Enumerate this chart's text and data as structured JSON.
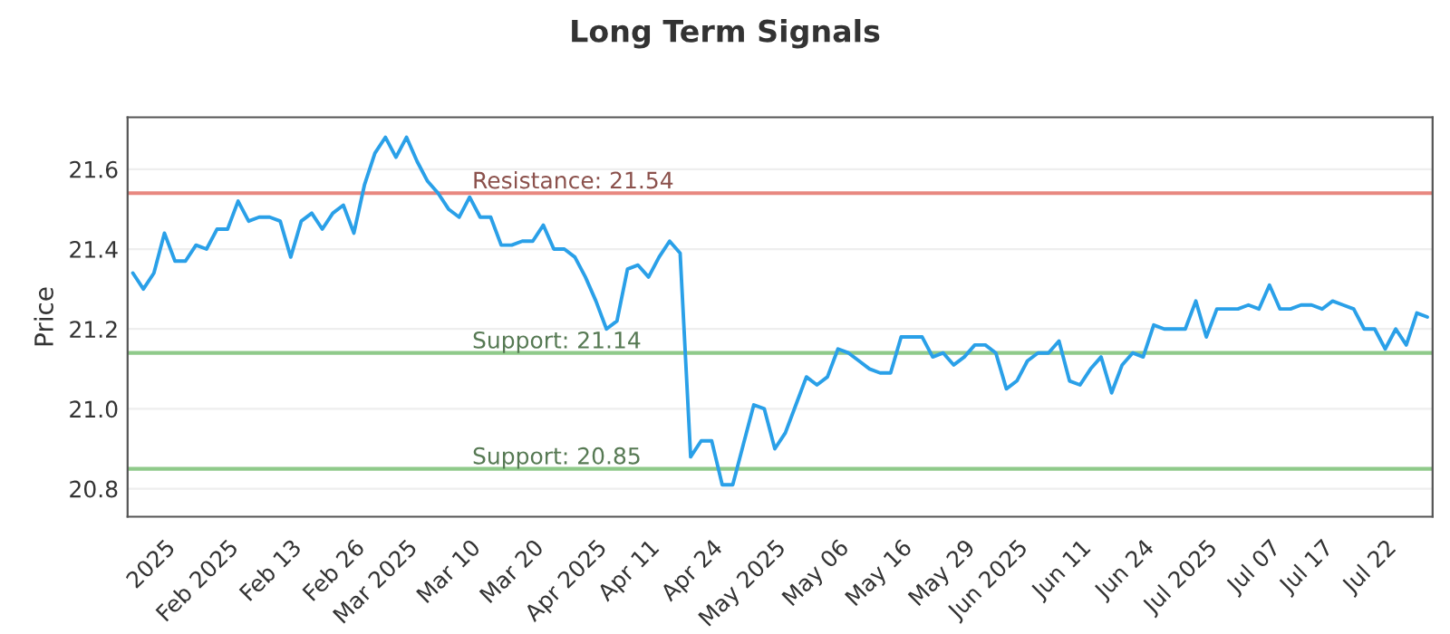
{
  "chart_data": {
    "type": "line",
    "title": "Long Term Signals",
    "ylabel": "Price",
    "categories": [
      null,
      null,
      null,
      "2025",
      null,
      null,
      null,
      null,
      null,
      "Feb 2025",
      null,
      null,
      null,
      null,
      null,
      "Feb 13",
      null,
      null,
      null,
      null,
      null,
      "Feb 26",
      null,
      null,
      null,
      null,
      "Mar 2025",
      null,
      null,
      null,
      null,
      null,
      "Mar 10",
      null,
      null,
      null,
      null,
      null,
      "Mar 20",
      null,
      null,
      null,
      null,
      null,
      "Apr 2025",
      null,
      null,
      null,
      null,
      "Apr 11",
      null,
      null,
      null,
      null,
      null,
      "Apr 24",
      null,
      null,
      null,
      null,
      null,
      "May 2025",
      null,
      null,
      null,
      null,
      null,
      "May 06",
      null,
      null,
      null,
      null,
      null,
      "May 16",
      null,
      null,
      null,
      null,
      null,
      "May 29",
      null,
      null,
      null,
      null,
      "Jun 2025",
      null,
      null,
      null,
      null,
      null,
      "Jun 11",
      null,
      null,
      null,
      null,
      null,
      "Jun 24",
      null,
      null,
      null,
      null,
      null,
      "Jul 2025",
      null,
      null,
      null,
      null,
      null,
      "Jul 07",
      null,
      null,
      null,
      null,
      "Jul 17",
      null,
      null,
      null,
      null,
      null,
      "Jul 22",
      null,
      null,
      null,
      null
    ],
    "series": [
      {
        "color": "#2aa0e8",
        "values": [
          21.34,
          21.3,
          21.34,
          21.44,
          21.37,
          21.37,
          21.41,
          21.4,
          21.45,
          21.45,
          21.52,
          21.47,
          21.48,
          21.48,
          21.47,
          21.38,
          21.47,
          21.49,
          21.45,
          21.49,
          21.51,
          21.44,
          21.56,
          21.64,
          21.68,
          21.63,
          21.68,
          21.62,
          21.57,
          21.54,
          21.5,
          21.48,
          21.53,
          21.48,
          21.48,
          21.41,
          21.41,
          21.42,
          21.42,
          21.46,
          21.4,
          21.4,
          21.38,
          21.33,
          21.27,
          21.2,
          21.22,
          21.35,
          21.36,
          21.33,
          21.38,
          21.42,
          21.39,
          20.88,
          20.92,
          20.92,
          20.81,
          20.81,
          20.91,
          21.01,
          21.0,
          20.9,
          20.94,
          21.01,
          21.08,
          21.06,
          21.08,
          21.15,
          21.14,
          21.12,
          21.1,
          21.09,
          21.09,
          21.18,
          21.18,
          21.18,
          21.13,
          21.14,
          21.11,
          21.13,
          21.16,
          21.16,
          21.14,
          21.05,
          21.07,
          21.12,
          21.14,
          21.14,
          21.17,
          21.07,
          21.06,
          21.1,
          21.13,
          21.04,
          21.11,
          21.14,
          21.13,
          21.21,
          21.2,
          21.2,
          21.2,
          21.27,
          21.18,
          21.25,
          21.25,
          21.25,
          21.26,
          21.25,
          21.31,
          21.25,
          21.25,
          21.26,
          21.26,
          21.25,
          21.27,
          21.26,
          21.25,
          21.2,
          21.2,
          21.15,
          21.2,
          21.16,
          21.24,
          21.23
        ]
      }
    ],
    "ylim": [
      20.73,
      21.73
    ],
    "yticks": [
      20.8,
      {
        "value": 21.0,
        "label": "21.0"
      },
      21.2,
      21.4,
      21.6
    ],
    "grid": "y",
    "marker": "none",
    "line_style": "solid",
    "legend": false,
    "ref_lines": [
      {
        "axis": "y",
        "value": 21.54,
        "label": "Resistance: 21.54",
        "color": "#e8877f"
      },
      {
        "axis": "y",
        "value": 21.14,
        "label": "Support: 21.14",
        "color": "#8fca8a"
      },
      {
        "axis": "y",
        "value": 20.85,
        "label": "Support: 20.85",
        "color": "#8fca8a"
      }
    ]
  }
}
